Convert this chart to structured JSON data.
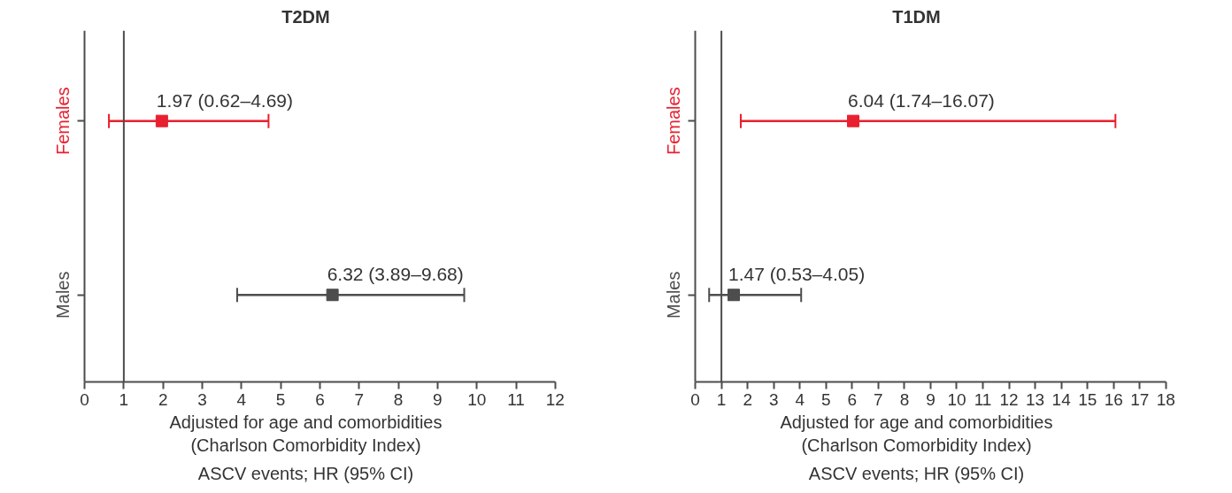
{
  "chart_data": [
    {
      "type": "scatter",
      "title": "T2DM",
      "orientation": "horizontal",
      "categories": [
        "Females",
        "Males"
      ],
      "values": [
        1.97,
        6.32
      ],
      "colors": [
        "#e8202f",
        "#4d4d4d"
      ],
      "errors": [
        [
          0.62,
          4.69
        ],
        [
          3.89,
          9.68
        ]
      ],
      "value_labels": [
        "1.97 (0.62–4.69)",
        "6.32 (3.89–9.68)"
      ],
      "xlim": [
        0,
        12
      ],
      "xticks": [
        0,
        1,
        2,
        3,
        4,
        5,
        6,
        7,
        8,
        9,
        10,
        11,
        12
      ],
      "xlabel": "Adjusted for age and comorbidities\n(Charlson Comorbidity Index)",
      "annotations": [
        "ASCV events; HR (95% CI)"
      ],
      "ref_lines": [
        {
          "axis": "x",
          "value": 1,
          "color": "#4d4d4d"
        }
      ],
      "marker": "square"
    },
    {
      "type": "scatter",
      "title": "T1DM",
      "orientation": "horizontal",
      "categories": [
        "Females",
        "Males"
      ],
      "values": [
        6.04,
        1.47
      ],
      "colors": [
        "#e8202f",
        "#4d4d4d"
      ],
      "errors": [
        [
          1.74,
          16.07
        ],
        [
          0.53,
          4.05
        ]
      ],
      "value_labels": [
        "6.04 (1.74–16.07)",
        "1.47 (0.53–4.05)"
      ],
      "xlim": [
        0,
        18
      ],
      "xticks": [
        0,
        1,
        2,
        3,
        4,
        5,
        6,
        7,
        8,
        9,
        10,
        11,
        12,
        13,
        14,
        15,
        16,
        17,
        18
      ],
      "xlabel": "Adjusted for age and comorbidities\n(Charlson Comorbidity Index)",
      "annotations": [
        "ASCV events; HR (95% CI)"
      ],
      "ref_lines": [
        {
          "axis": "x",
          "value": 1,
          "color": "#4d4d4d"
        }
      ],
      "marker": "square"
    }
  ]
}
